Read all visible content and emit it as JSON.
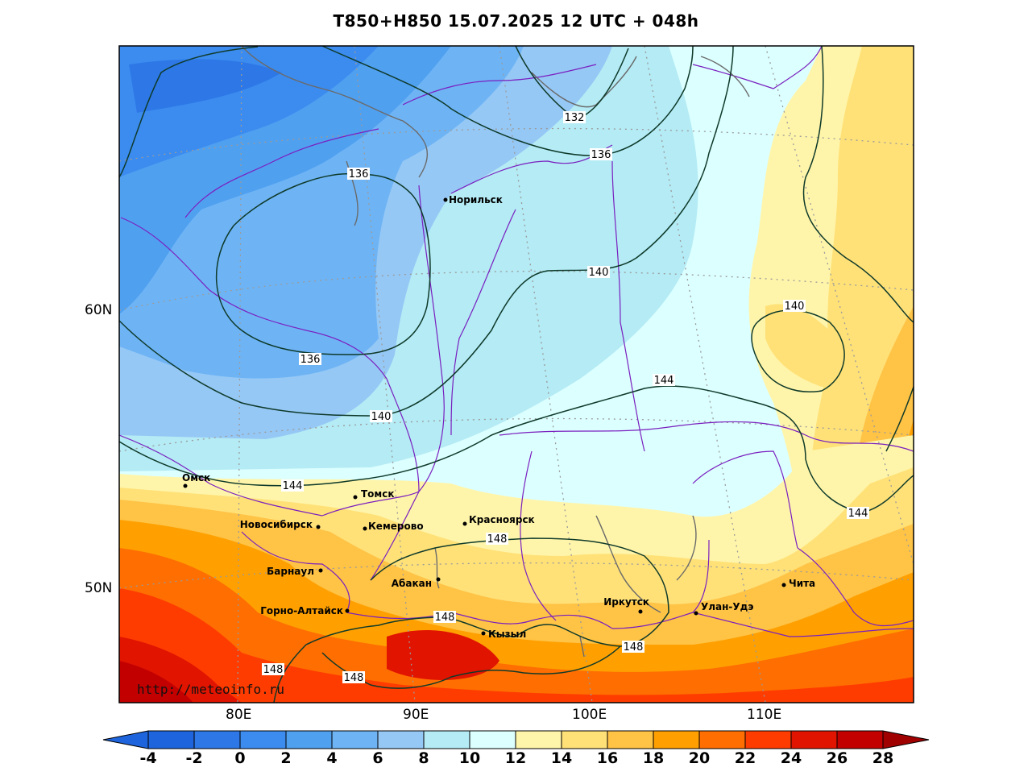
{
  "title": "T850+H850 15.07.2025 12 UTC + 048h",
  "credit": "http://meteoinfo.ru",
  "lat_labels": [
    "60N",
    "50N"
  ],
  "lon_labels": [
    "80E",
    "90E",
    "100E",
    "110E"
  ],
  "colorbar": {
    "ticks": [
      "-4",
      "-2",
      "0",
      "2",
      "4",
      "6",
      "8",
      "10",
      "12",
      "14",
      "16",
      "18",
      "20",
      "22",
      "24",
      "26",
      "28"
    ],
    "colors": [
      "#1e64dc",
      "#2d78e6",
      "#3c8cf0",
      "#50a0f0",
      "#6eb4f5",
      "#96c8f5",
      "#b4ebf5",
      "#dcffff",
      "#fff5aa",
      "#ffe178",
      "#ffc346",
      "#ffa000",
      "#ff6e00",
      "#ff3c00",
      "#e11400",
      "#c30000",
      "#a00000"
    ]
  },
  "cities": [
    "Норильск",
    "Омск",
    "Томск",
    "Новосибирск",
    "Кемерово",
    "Красноярск",
    "Барнаул",
    "Абакан",
    "Горно-Алтайск",
    "Кызыл",
    "Иркутск",
    "Улан-Удэ",
    "Чита"
  ],
  "contour_labels": [
    "132",
    "136",
    "136",
    "136",
    "140",
    "140",
    "140",
    "144",
    "144",
    "144",
    "148",
    "148",
    "148",
    "148",
    "148"
  ]
}
